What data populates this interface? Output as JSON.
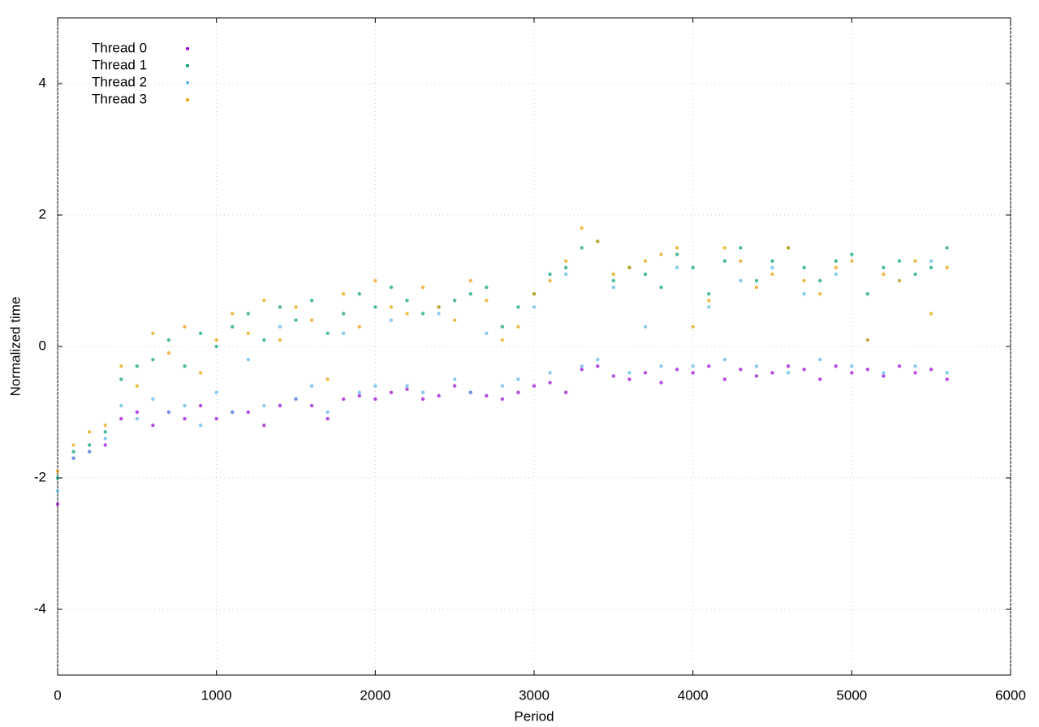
{
  "chart_data": {
    "type": "scatter",
    "xlabel": "Period",
    "ylabel": "Normalized time",
    "x": [
      0,
      100,
      200,
      300,
      400,
      500,
      600,
      700,
      800,
      900,
      1000,
      1100,
      1200,
      1300,
      1400,
      1500,
      1600,
      1700,
      1800,
      1900,
      2000,
      2100,
      2200,
      2300,
      2400,
      2500,
      2600,
      2700,
      2800,
      2900,
      3000,
      3100,
      3200,
      3300,
      3400,
      3500,
      3600,
      3700,
      3800,
      3900,
      4000,
      4100,
      4200,
      4300,
      4400,
      4500,
      4600,
      4700,
      4800,
      4900,
      5000,
      5100,
      5200,
      5300,
      5400,
      5500,
      5600
    ],
    "series": [
      {
        "name": "Thread 0",
        "color": "#9400d3",
        "values": [
          -2.4,
          -1.7,
          -1.6,
          -1.5,
          -1.1,
          -1.0,
          -1.2,
          -1.0,
          -1.1,
          -0.9,
          -1.1,
          -1.0,
          -1.0,
          -1.2,
          -0.9,
          -0.8,
          -0.9,
          -1.1,
          -0.8,
          -0.75,
          -0.8,
          -0.7,
          -0.65,
          -0.8,
          -0.75,
          -0.6,
          -0.7,
          -0.75,
          -0.8,
          -0.7,
          -0.6,
          -0.55,
          -0.7,
          -0.35,
          -0.3,
          -0.45,
          -0.5,
          -0.4,
          -0.55,
          -0.35,
          -0.4,
          -0.3,
          -0.5,
          -0.35,
          -0.45,
          -0.4,
          -0.3,
          -0.35,
          -0.5,
          -0.3,
          -0.4,
          -0.35,
          -0.45,
          -0.3,
          -0.4,
          -0.35,
          -0.5
        ]
      },
      {
        "name": "Thread 1",
        "color": "#009e73",
        "values": [
          -2.0,
          -1.6,
          -1.5,
          -1.3,
          -0.5,
          -0.3,
          -0.2,
          0.1,
          -0.3,
          0.2,
          0.0,
          0.3,
          0.5,
          0.1,
          0.6,
          0.4,
          0.7,
          0.2,
          0.5,
          0.8,
          0.6,
          0.9,
          0.7,
          0.5,
          0.6,
          0.7,
          0.8,
          0.9,
          0.3,
          0.6,
          0.8,
          1.1,
          1.2,
          1.5,
          1.6,
          1.0,
          1.2,
          1.1,
          0.9,
          1.4,
          1.2,
          0.8,
          1.3,
          1.5,
          1.0,
          1.3,
          1.5,
          1.2,
          1.0,
          1.3,
          1.4,
          0.8,
          1.2,
          1.3,
          1.1,
          1.2,
          1.5
        ]
      },
      {
        "name": "Thread 2",
        "color": "#56b4e9",
        "values": [
          -2.2,
          -1.7,
          -1.6,
          -1.4,
          -0.9,
          -1.1,
          -0.8,
          -1.0,
          -0.9,
          -1.2,
          -0.7,
          -1.0,
          -0.2,
          -0.9,
          0.3,
          -0.8,
          -0.6,
          -1.0,
          0.2,
          -0.7,
          -0.6,
          0.4,
          -0.6,
          -0.7,
          0.5,
          -0.5,
          -0.7,
          0.2,
          -0.6,
          -0.5,
          0.6,
          -0.4,
          1.1,
          -0.3,
          -0.2,
          0.9,
          -0.4,
          0.3,
          -0.3,
          1.2,
          -0.3,
          0.6,
          -0.2,
          1.0,
          -0.3,
          1.2,
          -0.4,
          0.8,
          -0.2,
          1.1,
          -0.3,
          0.1,
          -0.4,
          1.0,
          -0.3,
          1.3,
          -0.4
        ]
      },
      {
        "name": "Thread 3",
        "color": "#e69f00",
        "values": [
          -1.9,
          -1.5,
          -1.3,
          -1.2,
          -0.3,
          -0.6,
          0.2,
          -0.1,
          0.3,
          -0.4,
          0.1,
          0.5,
          0.2,
          0.7,
          0.1,
          0.6,
          0.4,
          -0.5,
          0.8,
          0.3,
          1.0,
          0.6,
          0.5,
          0.9,
          0.6,
          0.4,
          1.0,
          0.7,
          0.1,
          0.3,
          0.8,
          1.0,
          1.3,
          1.8,
          1.6,
          1.1,
          1.2,
          1.3,
          1.4,
          1.5,
          0.3,
          0.7,
          1.5,
          1.3,
          0.9,
          1.1,
          1.5,
          1.0,
          0.8,
          1.2,
          1.3,
          0.1,
          1.1,
          1.0,
          1.3,
          0.5,
          1.2
        ]
      }
    ],
    "xlim": [
      0,
      6000
    ],
    "xticks": [
      0,
      1000,
      2000,
      3000,
      4000,
      5000,
      6000
    ],
    "ylim": [
      -5,
      5
    ],
    "yticks": [
      -4,
      -2,
      0,
      2,
      4
    ],
    "grid": true,
    "legend": "upper-left"
  }
}
